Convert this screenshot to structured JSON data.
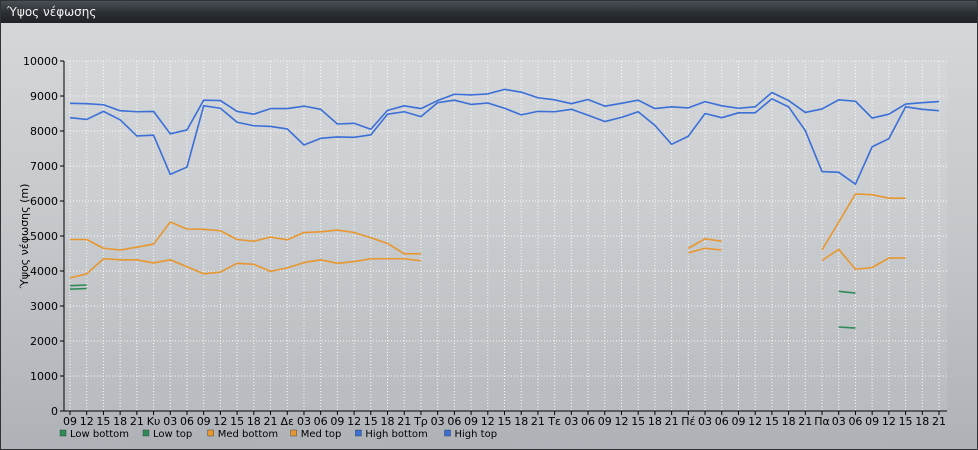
{
  "window": {
    "title": "Ύψος νέφωσης"
  },
  "colors": {
    "low": "#2e8b57",
    "med": "#e8962e",
    "high": "#3a6fd8",
    "grid": "#ffffff"
  },
  "chart_data": {
    "type": "line",
    "title": "",
    "xlabel": "",
    "ylabel": "Ύψος νέφωσης (m)",
    "ylim": [
      0,
      10000
    ],
    "yticks": [
      0,
      1000,
      2000,
      3000,
      4000,
      5000,
      6000,
      7000,
      8000,
      9000,
      10000
    ],
    "grid": true,
    "legend_position": "bottom-left",
    "categories": [
      "09",
      "12",
      "15",
      "18",
      "21",
      "Κυ",
      "03",
      "06",
      "09",
      "12",
      "15",
      "18",
      "21",
      "Δε",
      "03",
      "06",
      "09",
      "12",
      "15",
      "18",
      "21",
      "Τρ",
      "03",
      "06",
      "09",
      "12",
      "15",
      "18",
      "21",
      "Τε",
      "03",
      "06",
      "09",
      "12",
      "15",
      "18",
      "21",
      "Πέ",
      "03",
      "06",
      "09",
      "12",
      "15",
      "18",
      "21",
      "Πα",
      "03",
      "06",
      "09",
      "12",
      "15",
      "18",
      "21"
    ],
    "series": [
      {
        "name": "Low bottom",
        "color_key": "low",
        "values": [
          3480,
          3500,
          null,
          null,
          null,
          null,
          null,
          null,
          null,
          null,
          null,
          null,
          null,
          null,
          null,
          null,
          null,
          null,
          null,
          null,
          null,
          null,
          null,
          null,
          null,
          null,
          null,
          null,
          null,
          null,
          null,
          null,
          null,
          null,
          null,
          null,
          null,
          null,
          null,
          null,
          null,
          null,
          null,
          null,
          null,
          null,
          2400,
          2370,
          null,
          null,
          null,
          null,
          null
        ]
      },
      {
        "name": "Low top",
        "color_key": "low",
        "values": [
          3580,
          3600,
          null,
          null,
          null,
          null,
          null,
          null,
          null,
          null,
          null,
          null,
          null,
          null,
          null,
          null,
          null,
          null,
          null,
          null,
          null,
          null,
          null,
          null,
          null,
          null,
          null,
          null,
          null,
          null,
          null,
          null,
          null,
          null,
          null,
          null,
          null,
          null,
          null,
          null,
          null,
          null,
          null,
          null,
          null,
          null,
          3420,
          3370,
          null,
          null,
          null,
          null,
          null
        ]
      },
      {
        "name": "Med bottom",
        "color_key": "med",
        "values": [
          3800,
          3920,
          4350,
          4320,
          4320,
          4230,
          4320,
          4120,
          3920,
          3970,
          4220,
          4190,
          3990,
          4090,
          4240,
          4320,
          4220,
          4270,
          4350,
          4350,
          4350,
          4290,
          null,
          null,
          null,
          null,
          null,
          null,
          null,
          null,
          null,
          null,
          null,
          null,
          null,
          null,
          null,
          4520,
          4650,
          4600,
          null,
          null,
          null,
          null,
          null,
          4300,
          4620,
          4050,
          4100,
          4370,
          4370,
          null,
          null
        ]
      },
      {
        "name": "Med top",
        "color_key": "med",
        "values": [
          4900,
          4900,
          4650,
          4600,
          4680,
          4770,
          5400,
          5200,
          5190,
          5150,
          4900,
          4850,
          4970,
          4890,
          5100,
          5120,
          5170,
          5100,
          4950,
          4790,
          4490,
          4490,
          null,
          null,
          null,
          null,
          null,
          null,
          null,
          null,
          null,
          null,
          null,
          null,
          null,
          null,
          null,
          4650,
          4920,
          4850,
          null,
          null,
          null,
          null,
          null,
          4600,
          5400,
          6200,
          6180,
          6080,
          6080,
          null,
          null
        ]
      },
      {
        "name": "High bottom",
        "color_key": "high",
        "values": [
          8380,
          8330,
          8560,
          8320,
          7860,
          7880,
          6760,
          6970,
          8720,
          8650,
          8250,
          8150,
          8130,
          8060,
          7600,
          7790,
          7830,
          7820,
          7890,
          8480,
          8550,
          8410,
          8810,
          8880,
          8760,
          8800,
          8650,
          8460,
          8560,
          8550,
          8620,
          8450,
          8270,
          8390,
          8550,
          8160,
          7620,
          7850,
          8500,
          8380,
          8520,
          8520,
          8920,
          8690,
          8010,
          6840,
          6820,
          6480,
          7550,
          7780,
          8690,
          8620,
          8580
        ]
      },
      {
        "name": "High top",
        "color_key": "high",
        "values": [
          8790,
          8780,
          8750,
          8580,
          8550,
          8560,
          7920,
          8030,
          8880,
          8870,
          8560,
          8480,
          8640,
          8640,
          8710,
          8620,
          8200,
          8220,
          8050,
          8590,
          8720,
          8640,
          8870,
          9050,
          9030,
          9060,
          9190,
          9110,
          8950,
          8890,
          8780,
          8900,
          8710,
          8790,
          8880,
          8640,
          8690,
          8660,
          8840,
          8720,
          8650,
          8690,
          9100,
          8870,
          8530,
          8630,
          8890,
          8850,
          8370,
          8480,
          8770,
          8810,
          8840
        ]
      }
    ]
  }
}
